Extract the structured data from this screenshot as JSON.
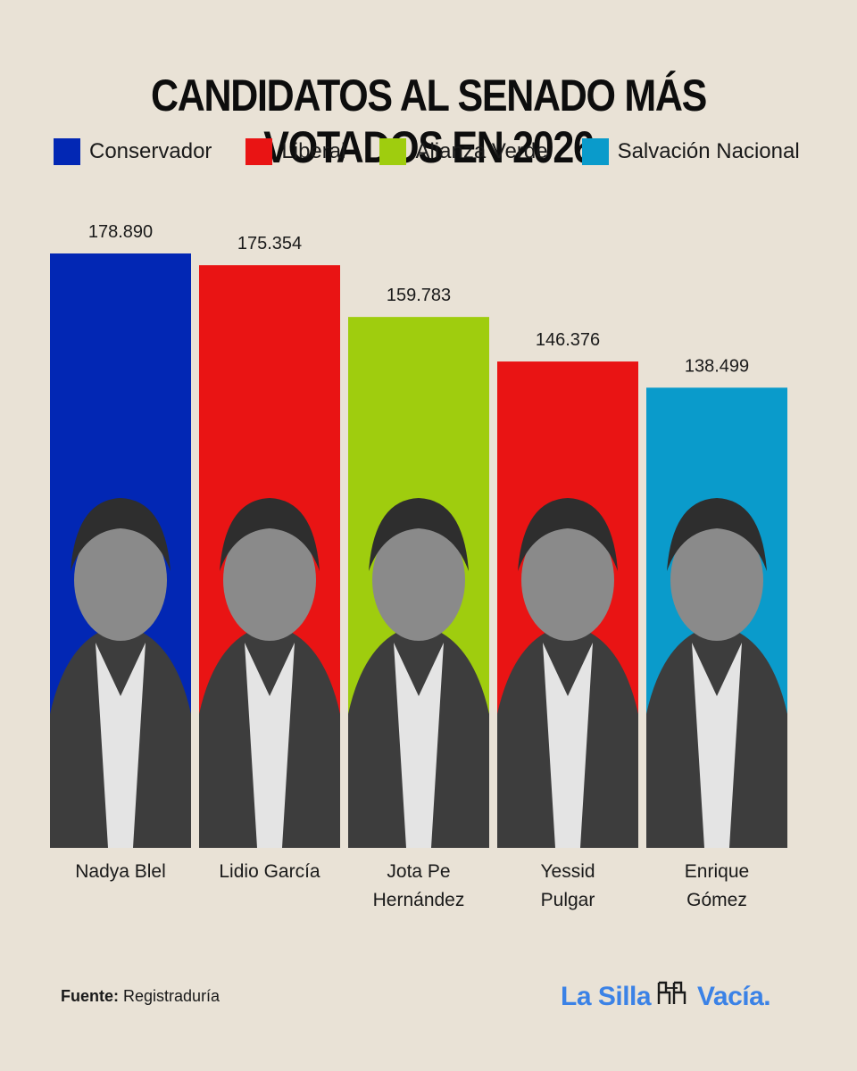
{
  "title": "CANDIDATOS AL SENADO MÁS VOTADOS EN 2026",
  "legend": [
    {
      "label": "Conservador",
      "color": "#0227b4"
    },
    {
      "label": "Liberal",
      "color": "#e91414"
    },
    {
      "label": "Alianza Verde",
      "color": "#9fcd0e"
    },
    {
      "label": "Salvación Nacional",
      "color": "#0a9bcb"
    }
  ],
  "chart_data": {
    "type": "bar",
    "title": "CANDIDATOS AL SENADO MÁS VOTADOS EN 2026",
    "categories": [
      [
        "Nadya Blel"
      ],
      [
        "Lidio García"
      ],
      [
        "Jota Pe",
        "Hernández"
      ],
      [
        "Yessid",
        "Pulgar"
      ],
      [
        "Enrique",
        "Gómez"
      ]
    ],
    "values": [
      178890,
      175354,
      159783,
      146376,
      138499
    ],
    "value_labels": [
      "178.890",
      "175.354",
      "159.783",
      "146.376",
      "138.499"
    ],
    "parties": [
      "Conservador",
      "Liberal",
      "Alianza Verde",
      "Liberal",
      "Salvación Nacional"
    ],
    "colors": [
      "#0227b4",
      "#e91414",
      "#9fcd0e",
      "#e91414",
      "#0a9bcb"
    ],
    "ylim": [
      0,
      178890
    ],
    "xlabel": "",
    "ylabel": "",
    "grid": false,
    "legend_position": "top"
  },
  "source": {
    "label": "Fuente:",
    "value": "Registraduría"
  },
  "brand": {
    "left": "La Silla",
    "right": "Vacía."
  }
}
